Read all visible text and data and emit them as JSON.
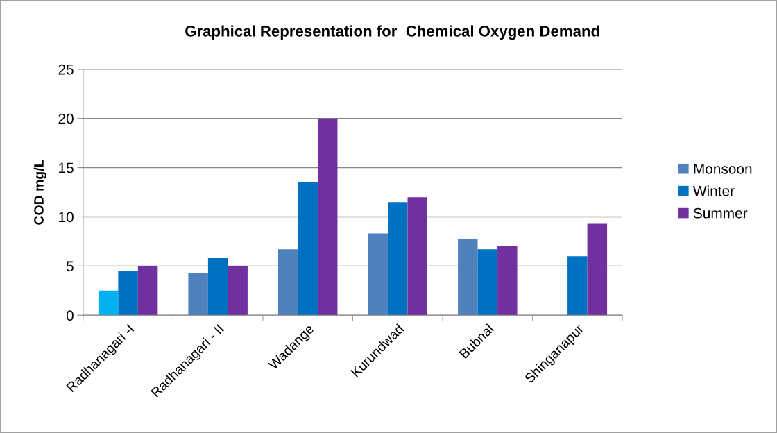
{
  "chart_data": {
    "type": "bar",
    "title": "Graphical Representation for  Chemical Oxygen Demand",
    "ylabel": "COD mg/L",
    "categories": [
      "Radhanagari -I",
      "Radhanagari - II",
      "Wadange",
      "Kurundwad",
      "Bubnal",
      "Shinganapur"
    ],
    "series": [
      {
        "name": "Monsoon",
        "color": "#4f81bd",
        "colors": [
          "#00b0f0",
          "#4f81bd",
          "#4f81bd",
          "#4f81bd",
          "#4f81bd",
          "#4f81bd"
        ],
        "values": [
          2.5,
          4.3,
          6.7,
          8.3,
          7.7,
          null
        ]
      },
      {
        "name": "Winter",
        "color": "#0070c0",
        "values": [
          4.5,
          5.8,
          13.5,
          11.5,
          6.7,
          6.0
        ]
      },
      {
        "name": "Summer",
        "color": "#7030a0",
        "values": [
          5.0,
          5.0,
          20.0,
          12.0,
          7.0,
          9.3
        ]
      }
    ],
    "ylim": [
      0,
      25
    ],
    "yticks": [
      0,
      5,
      10,
      15,
      20,
      25
    ],
    "grid": "y",
    "legend": "right"
  }
}
